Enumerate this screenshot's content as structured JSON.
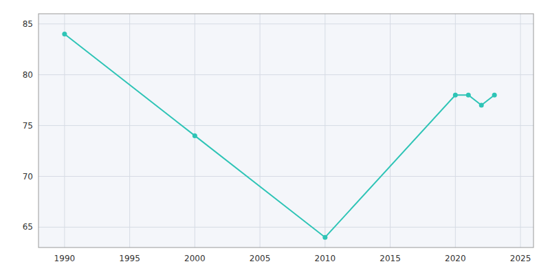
{
  "chart_data": {
    "type": "line",
    "x": [
      1990,
      2000,
      2010,
      2020,
      2021,
      2022,
      2023
    ],
    "values": [
      84,
      74,
      64,
      78,
      78,
      77,
      78
    ],
    "color": "#2ec4b6",
    "marker": "circle",
    "xlim": [
      1988,
      2026
    ],
    "ylim": [
      63,
      86
    ],
    "xticks": [
      1990,
      1995,
      2000,
      2005,
      2010,
      2015,
      2020,
      2025
    ],
    "yticks": [
      65,
      70,
      75,
      80,
      85
    ],
    "grid": true
  }
}
